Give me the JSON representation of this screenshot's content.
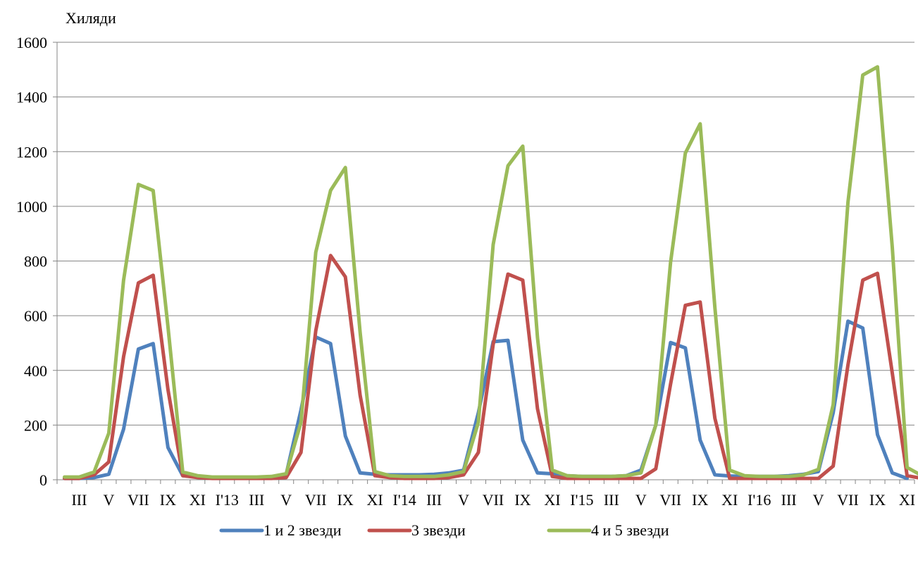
{
  "chart_data": {
    "type": "line",
    "unit_label": "Хиляди",
    "ylim": [
      0,
      1600
    ],
    "yticks": [
      0,
      200,
      400,
      600,
      800,
      1000,
      1200,
      1400,
      1600
    ],
    "grid": "horizontal",
    "legend_position": "bottom",
    "x_tick_labels": [
      "III",
      "V",
      "VII",
      "IX",
      "XI",
      "I'13",
      "III",
      "V",
      "VII",
      "IX",
      "XI",
      "I'14",
      "III",
      "V",
      "VII",
      "IX",
      "XI",
      "I'15",
      "III",
      "V",
      "VII",
      "IX",
      "XI",
      "I'16",
      "III",
      "V",
      "VII",
      "IX",
      "XI"
    ],
    "x_tick_positions": [
      1,
      3,
      5,
      7,
      9,
      11,
      13,
      15,
      17,
      19,
      21,
      23,
      25,
      27,
      29,
      31,
      33,
      35,
      37,
      39,
      41,
      43,
      45,
      47,
      49,
      51,
      53,
      55,
      57
    ],
    "series": [
      {
        "name": "1 и 2 звезди",
        "color": "#4F81BD",
        "values": [
          5,
          5,
          8,
          20,
          185,
          478,
          498,
          118,
          15,
          10,
          8,
          8,
          8,
          8,
          10,
          20,
          255,
          522,
          498,
          160,
          25,
          20,
          18,
          18,
          18,
          20,
          25,
          35,
          245,
          505,
          510,
          145,
          25,
          22,
          15,
          12,
          12,
          12,
          15,
          35,
          200,
          502,
          482,
          145,
          18,
          14,
          12,
          12,
          12,
          15,
          20,
          30,
          245,
          580,
          555,
          165,
          25,
          5
        ]
      },
      {
        "name": "3 звезди",
        "color": "#C0504D",
        "values": [
          5,
          5,
          18,
          65,
          450,
          720,
          748,
          330,
          15,
          8,
          5,
          5,
          5,
          5,
          5,
          8,
          100,
          545,
          820,
          742,
          310,
          15,
          8,
          5,
          5,
          5,
          8,
          18,
          100,
          495,
          752,
          730,
          260,
          12,
          5,
          5,
          5,
          5,
          5,
          5,
          40,
          350,
          638,
          650,
          225,
          5,
          5,
          5,
          5,
          5,
          5,
          5,
          50,
          420,
          730,
          755,
          390,
          15,
          5
        ]
      },
      {
        "name": "4 и 5 звезди",
        "color": "#9BBB59",
        "values": [
          10,
          10,
          28,
          170,
          730,
          1080,
          1058,
          560,
          28,
          15,
          10,
          10,
          10,
          10,
          12,
          22,
          210,
          832,
          1058,
          1142,
          540,
          30,
          15,
          12,
          12,
          12,
          18,
          30,
          210,
          860,
          1148,
          1220,
          520,
          35,
          15,
          12,
          12,
          12,
          15,
          25,
          200,
          795,
          1195,
          1302,
          630,
          35,
          15,
          12,
          12,
          12,
          18,
          38,
          275,
          1015,
          1480,
          1510,
          850,
          45,
          15
        ]
      }
    ]
  }
}
